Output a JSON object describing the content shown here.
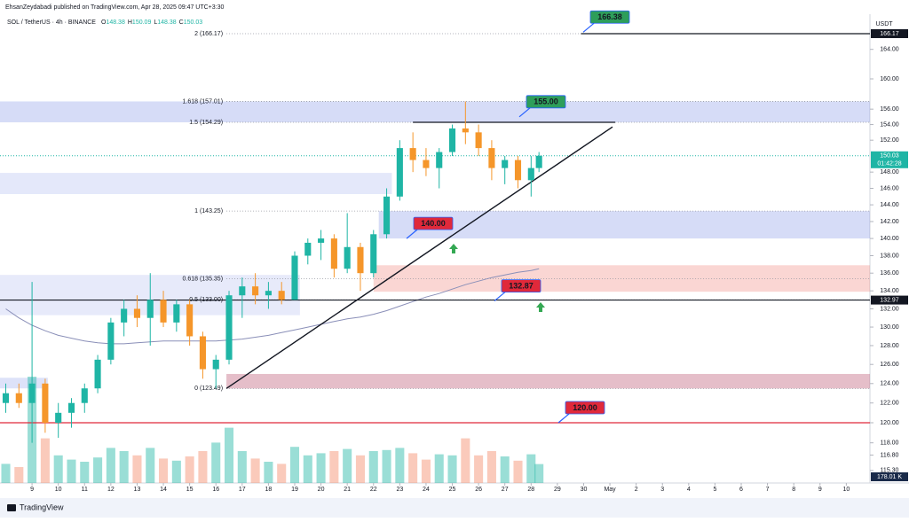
{
  "header": {
    "publisher": "EhsanZeydabadi published on TradingView.com, Apr 28, 2025 09:47 UTC+3:30"
  },
  "chart_data": {
    "type": "candlestick",
    "symbol": "SOL / TetherUS · 4h · BINANCE",
    "ohlc_legend": [
      {
        "name": "O",
        "value": 148.38
      },
      {
        "name": "H",
        "value": 150.09
      },
      {
        "name": "L",
        "value": 148.38
      },
      {
        "name": "C",
        "value": 150.03
      }
    ],
    "currency": "USDT",
    "up_color": "#1fb5a5",
    "down_color": "#f5962a",
    "x": [
      -1,
      -0.5,
      0,
      0.5,
      1,
      1.5,
      2,
      2.5,
      3,
      3.5,
      4,
      4.5,
      5,
      5.5,
      6,
      6.5,
      7,
      7.5,
      8,
      8.5,
      9,
      9.5,
      10,
      10.5,
      11,
      11.5,
      12,
      12.5,
      13,
      13.5,
      14,
      14.5,
      15,
      15.5,
      16,
      16.5,
      17,
      17.5,
      18,
      18.5,
      19,
      19.3
    ],
    "open": [
      122,
      123,
      122,
      124,
      120,
      121,
      122,
      123.5,
      126.5,
      130.5,
      132,
      131,
      133,
      130.5,
      132.5,
      129,
      125.5,
      126.5,
      133.5,
      134.5,
      133.5,
      134,
      133,
      138,
      139.5,
      140,
      136.5,
      139,
      136,
      140.5,
      145,
      151,
      149.5,
      148.5,
      150.5,
      153.5,
      153,
      151,
      148.5,
      149.5,
      147,
      148.5
    ],
    "high": [
      124,
      124,
      135,
      124.5,
      122,
      122.5,
      124,
      127,
      131,
      133,
      133.5,
      136,
      134,
      133,
      133,
      129.5,
      127,
      134,
      135.5,
      136,
      135,
      135,
      138.5,
      140,
      141,
      140.5,
      143,
      139.5,
      141,
      146,
      152,
      153,
      151,
      151,
      154,
      157,
      154,
      152,
      150,
      150,
      150,
      150.5
    ],
    "low": [
      121,
      121.5,
      118,
      119,
      118.5,
      119.5,
      121,
      123,
      126,
      129,
      130,
      128,
      130,
      129.5,
      128,
      124.5,
      123.49,
      126,
      131,
      132.5,
      132,
      132.5,
      133,
      137,
      137.5,
      135.5,
      136,
      134,
      135.5,
      140,
      144.5,
      148,
      147.5,
      146,
      150,
      151.5,
      150,
      147,
      146.5,
      146,
      145,
      148
    ],
    "close": [
      123,
      122,
      124,
      120,
      121,
      122,
      123.5,
      126.5,
      130.5,
      132,
      131,
      133,
      130.5,
      132.5,
      129,
      125.5,
      126.5,
      133.5,
      134.5,
      133.5,
      134,
      133,
      138,
      139.5,
      140,
      136.5,
      139,
      136,
      140.5,
      145,
      151,
      149.5,
      148.5,
      150.5,
      153.5,
      153,
      151,
      148.5,
      149.5,
      147,
      148.5,
      150.03
    ],
    "volume": [
      180,
      150,
      1000,
      420,
      260,
      220,
      200,
      240,
      330,
      300,
      260,
      330,
      230,
      210,
      250,
      300,
      380,
      520,
      300,
      230,
      200,
      180,
      340,
      260,
      280,
      300,
      320,
      260,
      300,
      310,
      330,
      280,
      220,
      270,
      260,
      420,
      260,
      300,
      250,
      210,
      270,
      178.01
    ],
    "volume_label": "178.01 K",
    "ma": {
      "color": "#8a8fb8",
      "values": [
        132,
        131,
        130.2,
        129.6,
        129.1,
        128.8,
        128.5,
        128.3,
        128.2,
        128.2,
        128.3,
        128.4,
        128.5,
        128.5,
        128.5,
        128.5,
        128.5,
        128.6,
        128.7,
        128.9,
        129.1,
        129.4,
        129.7,
        130,
        130.3,
        130.6,
        130.9,
        131.1,
        131.4,
        131.8,
        132.3,
        132.8,
        133.3,
        133.7,
        134.2,
        134.7,
        135.1,
        135.5,
        135.8,
        136.1,
        136.3,
        136.5
      ]
    },
    "log_scale": true,
    "ylim": [
      114.1,
      168.9
    ],
    "yticks": [
      {
        "value": 115.3,
        "label": "115.30"
      },
      {
        "value": 116.8,
        "label": "116.80"
      },
      {
        "value": 118,
        "label": "118.00"
      },
      {
        "value": 120,
        "label": "120.00"
      },
      {
        "value": 122,
        "label": "122.00"
      },
      {
        "value": 124,
        "label": "124.00"
      },
      {
        "value": 126,
        "label": "126.00"
      },
      {
        "value": 128,
        "label": "128.00"
      },
      {
        "value": 130,
        "label": "130.00"
      },
      {
        "value": 132,
        "label": "132.00"
      },
      {
        "value": 134,
        "label": "134.00"
      },
      {
        "value": 136,
        "label": "136.00"
      },
      {
        "value": 138,
        "label": "138.00"
      },
      {
        "value": 140,
        "label": "140.00"
      },
      {
        "value": 142,
        "label": "142.00"
      },
      {
        "value": 144,
        "label": "144.00"
      },
      {
        "value": 146,
        "label": "146.00"
      },
      {
        "value": 148,
        "label": "148.00"
      },
      {
        "value": 152,
        "label": "152.00"
      },
      {
        "value": 154,
        "label": "154.00"
      },
      {
        "value": 156,
        "label": "156.00"
      },
      {
        "value": 160,
        "label": "160.00"
      },
      {
        "value": 164,
        "label": "164.00"
      }
    ],
    "xlim": [
      -1.22,
      31.9
    ],
    "xticks": [
      {
        "value": 0,
        "label": "9"
      },
      {
        "value": 1,
        "label": "10"
      },
      {
        "value": 2,
        "label": "11"
      },
      {
        "value": 3,
        "label": "12"
      },
      {
        "value": 4,
        "label": "13"
      },
      {
        "value": 5,
        "label": "14"
      },
      {
        "value": 6,
        "label": "15"
      },
      {
        "value": 7,
        "label": "16"
      },
      {
        "value": 8,
        "label": "17"
      },
      {
        "value": 9,
        "label": "18"
      },
      {
        "value": 10,
        "label": "19"
      },
      {
        "value": 11,
        "label": "20"
      },
      {
        "value": 12,
        "label": "21"
      },
      {
        "value": 13,
        "label": "22"
      },
      {
        "value": 14,
        "label": "23"
      },
      {
        "value": 15,
        "label": "24"
      },
      {
        "value": 16,
        "label": "25"
      },
      {
        "value": 17,
        "label": "26"
      },
      {
        "value": 18,
        "label": "27"
      },
      {
        "value": 19,
        "label": "28"
      },
      {
        "value": 20,
        "label": "29"
      },
      {
        "value": 21,
        "label": "30"
      },
      {
        "value": 22,
        "label": "May"
      },
      {
        "value": 23,
        "label": "2"
      },
      {
        "value": 24,
        "label": "3"
      },
      {
        "value": 25,
        "label": "4"
      },
      {
        "value": 26,
        "label": "5"
      },
      {
        "value": 27,
        "label": "6"
      },
      {
        "value": 28,
        "label": "7"
      },
      {
        "value": 29,
        "label": "8"
      },
      {
        "value": 30,
        "label": "9"
      },
      {
        "value": 31,
        "label": "10"
      }
    ],
    "price_labels": [
      {
        "value": 166.17,
        "label": "166.17",
        "color": "#131722"
      },
      {
        "value": 150.03,
        "label": "150.03",
        "color": "#1fb5a5"
      },
      {
        "value": 132.97,
        "label": "132.97",
        "color": "#131722"
      }
    ],
    "countdown": "01:42:28",
    "zones": [
      {
        "low": 154.29,
        "high": 157.01,
        "from": -1.22,
        "to": 31.9,
        "color": "rgba(120,140,230,0.3)"
      },
      {
        "low": 145.3,
        "high": 147.9,
        "from": -1.22,
        "to": 13.7,
        "color": "rgba(120,140,230,0.2)"
      },
      {
        "low": 140,
        "high": 143.25,
        "from": 13.2,
        "to": 31.9,
        "color": "rgba(120,140,230,0.3)"
      },
      {
        "low": 131.3,
        "high": 135.8,
        "from": -1.22,
        "to": 10.2,
        "color": "rgba(120,140,230,0.18)"
      },
      {
        "low": 133.9,
        "high": 136.9,
        "from": 13,
        "to": 31.9,
        "color": "rgba(240,120,110,0.3)"
      },
      {
        "low": 123.49,
        "high": 125,
        "from": 7.4,
        "to": 31.9,
        "color": "rgba(180,70,100,0.35)"
      },
      {
        "low": 123.5,
        "high": 124.6,
        "from": -1.22,
        "to": 0.6,
        "color": "rgba(120,140,230,0.25)"
      }
    ],
    "fib_levels": [
      {
        "price": 166.17,
        "label": "2 (166.17)"
      },
      {
        "price": 157.01,
        "label": "1.618 (157.01)"
      },
      {
        "price": 154.29,
        "label": "1.5 (154.29)"
      },
      {
        "price": 143.25,
        "label": "1 (143.25)"
      },
      {
        "price": 135.35,
        "label": "0.618 (135.35)"
      },
      {
        "price": 133,
        "label": "0.5 (133.00)"
      },
      {
        "price": 123.49,
        "label": "0 (123.49)"
      }
    ],
    "lines": [
      {
        "price": 120,
        "from": -1.22,
        "to": 31.9,
        "color": "#e0293a"
      },
      {
        "price": 132.97,
        "from": -1.22,
        "to": 31.9,
        "color": "#131722"
      },
      {
        "price": 166.17,
        "from": 20.9,
        "to": 31.9,
        "color": "#131722"
      },
      {
        "price": 154.29,
        "from": 14.5,
        "to": 22.2,
        "color": "#131722"
      }
    ],
    "trend_line": {
      "x": [
        7.4,
        22.1
      ],
      "y": [
        123.49,
        153.7
      ]
    },
    "callouts": [
      {
        "value": 166.38,
        "label": "166.38",
        "color": "#2e9e5a"
      },
      {
        "value": 155,
        "label": "155.00",
        "color": "#2e9e5a"
      },
      {
        "value": 140,
        "label": "140.00",
        "color": "#e0293a"
      },
      {
        "value": 132.87,
        "label": "132.87",
        "color": "#e0293a"
      },
      {
        "value": 120,
        "label": "120.00",
        "color": "#e0293a"
      }
    ]
  },
  "footer": {
    "brand": "TradingView"
  }
}
